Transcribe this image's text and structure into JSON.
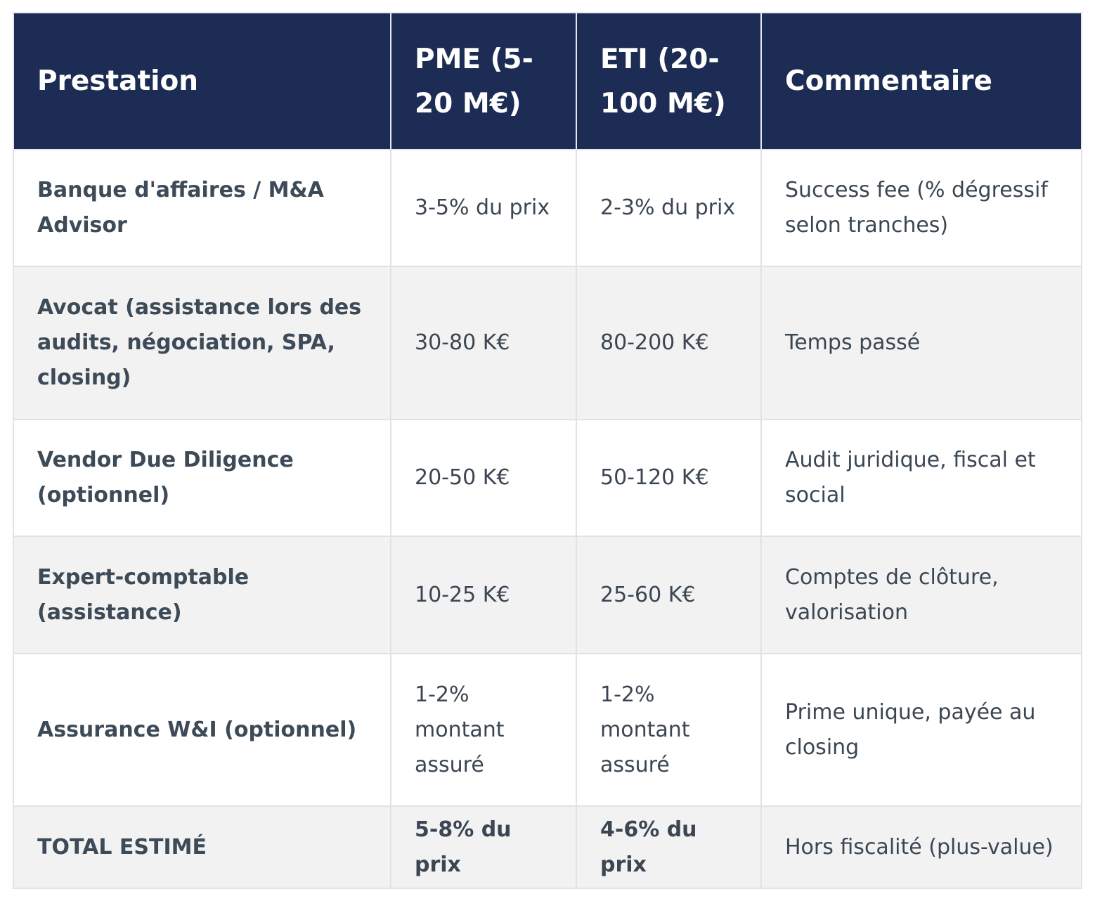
{
  "table": {
    "headers": [
      "Prestation",
      "PME (5-20 M€)",
      "ETI (20-100 M€)",
      "Commentaire"
    ],
    "rows": [
      {
        "prestation": "Banque d'affaires / M&A Advisor",
        "pme": "3-5% du prix",
        "eti": "2-3% du prix",
        "commentaire": "Success fee (% dégressif selon tranches)"
      },
      {
        "prestation": "Avocat (assistance lors des audits, négociation, SPA, closing)",
        "pme": "30-80 K€",
        "eti": "80-200 K€",
        "commentaire": "Temps passé"
      },
      {
        "prestation": "Vendor Due Diligence (optionnel)",
        "pme": "20-50 K€",
        "eti": "50-120 K€",
        "commentaire": "Audit juridique, fiscal et social"
      },
      {
        "prestation": "Expert-comptable (assistance)",
        "pme": "10-25 K€",
        "eti": "25-60 K€",
        "commentaire": "Comptes de clôture, valorisation"
      },
      {
        "prestation": "Assurance W&I (optionnel)",
        "pme": "1-2% montant assuré",
        "eti": "1-2% montant assuré",
        "commentaire": "Prime unique, payée au closing"
      },
      {
        "prestation": "TOTAL ESTIMÉ",
        "pme": "5-8% du prix",
        "eti": "4-6% du prix",
        "commentaire": "Hors fiscalité (plus-value)"
      }
    ]
  },
  "colors": {
    "header_bg": "#1c2c54",
    "header_text": "#ffffff",
    "alt_row_bg": "#f2f2f2",
    "border": "#e2e2e2",
    "body_text": "#3b4652"
  }
}
